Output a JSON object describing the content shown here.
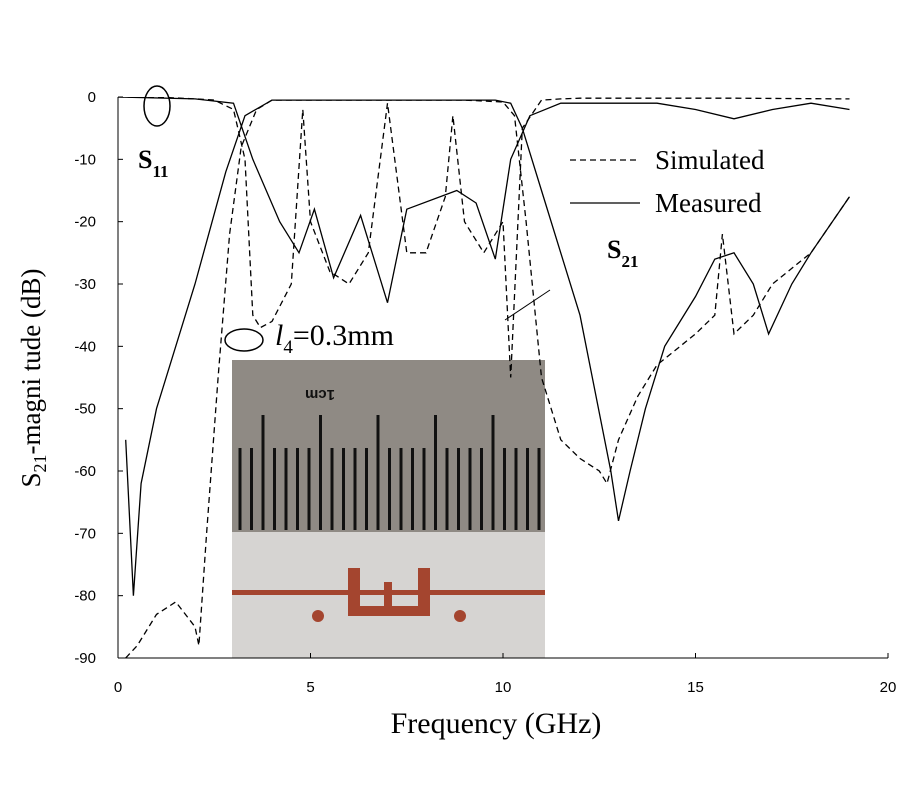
{
  "chart_data": {
    "type": "line",
    "xlabel": "Frequency (GHz)",
    "ylabel": [
      "S",
      "21",
      "-magni tude (dB)"
    ],
    "xlim": [
      0,
      20
    ],
    "xticks": [
      0,
      5,
      10,
      15,
      20
    ],
    "ylim": [
      -90,
      0
    ],
    "yticks": [
      -90,
      -80,
      -70,
      -60,
      -50,
      -40,
      -30,
      -20,
      -10,
      0
    ],
    "annotations": {
      "s11": [
        "S",
        "11"
      ],
      "s21": [
        "S",
        "21"
      ],
      "l4": [
        "l",
        "4",
        "=0.3mm"
      ],
      "inset": "1cm"
    },
    "series": [
      {
        "name": "Simulated",
        "color": "#000000",
        "dash": "6,4",
        "lines": [
          {
            "x": [
              0.2,
              0.5,
              1.0,
              1.5,
              2.0,
              2.1,
              2.3,
              2.6,
              2.9,
              3.2,
              3.6,
              4,
              5,
              6,
              7,
              8,
              9,
              10,
              10.3,
              10.6,
              11,
              11.5,
              12,
              12.5,
              12.7,
              13,
              13.5,
              14,
              15,
              15.5,
              15.7,
              16,
              16.5,
              17,
              18,
              19
            ],
            "values": [
              -90,
              -88,
              -83,
              -81,
              -85,
              -88,
              -70,
              -45,
              -22,
              -8,
              -2,
              -0.5,
              -0.5,
              -0.5,
              -0.5,
              -0.5,
              -0.5,
              -0.8,
              -3,
              -20,
              -45,
              -55,
              -58,
              -60,
              -62,
              -55,
              -48,
              -43,
              -38,
              -35,
              -22,
              -38,
              -35,
              -30,
              -25,
              -16
            ]
          },
          {
            "x": [
              0,
              1,
              2,
              2.5,
              3,
              3.3,
              3.5,
              3.7,
              4,
              4.5,
              4.8,
              5,
              5.5,
              6,
              6.5,
              7,
              7.5,
              8,
              8.5,
              8.7,
              9,
              9.5,
              10,
              10.2,
              10.5,
              11,
              11.5,
              12,
              14,
              16,
              19
            ],
            "values": [
              0,
              0,
              -0.3,
              -0.5,
              -2,
              -10,
              -35,
              -37,
              -36,
              -30,
              -2,
              -20,
              -28,
              -30,
              -25,
              -1,
              -25,
              -25,
              -16,
              -3,
              -20,
              -25,
              -20,
              -45,
              -5,
              -0.5,
              -0.3,
              -0.2,
              -0.2,
              -0.2,
              -0.3
            ]
          }
        ]
      },
      {
        "name": "Measured",
        "color": "#000000",
        "dash": "none",
        "lines": [
          {
            "x": [
              0.2,
              0.4,
              0.6,
              1,
              2,
              2.8,
              3.3,
              4,
              6,
              8,
              9.8,
              10.2,
              10.5,
              11,
              12,
              12.8,
              13,
              13.3,
              13.7,
              14.2,
              15,
              15.5,
              16,
              16.5,
              16.9,
              17.5,
              18,
              19
            ],
            "values": [
              -55,
              -80,
              -62,
              -50,
              -30,
              -12,
              -3,
              -0.5,
              -0.5,
              -0.5,
              -0.5,
              -1,
              -5,
              -15,
              -35,
              -60,
              -68,
              -60,
              -50,
              -40,
              -32,
              -26,
              -25,
              -30,
              -38,
              -30,
              -25,
              -16
            ]
          },
          {
            "x": [
              0,
              2,
              3,
              3.5,
              4.2,
              4.7,
              5.1,
              5.6,
              6.3,
              7,
              7.5,
              8.8,
              9.3,
              9.8,
              10.2,
              10.7,
              11.5,
              14,
              15,
              16,
              17,
              18,
              19
            ],
            "values": [
              0,
              -0.3,
              -1,
              -10,
              -20,
              -25,
              -18,
              -29,
              -19,
              -33,
              -18,
              -15,
              -17,
              -26,
              -10,
              -3,
              -1,
              -1,
              -2,
              -3.5,
              -2,
              -1,
              -2
            ]
          }
        ]
      }
    ]
  }
}
